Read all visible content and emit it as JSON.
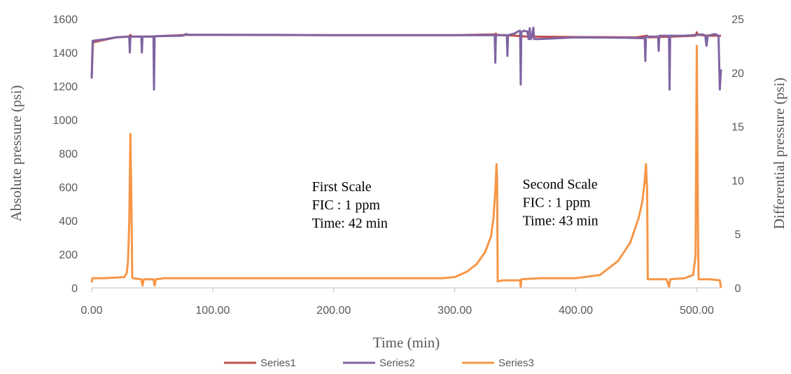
{
  "chart_data": {
    "type": "line",
    "title": "",
    "xlabel": "Time (min)",
    "ylabel": "Absolute pressure (psi)",
    "y2label": "Differential pressure (psi)",
    "xlim": [
      0,
      520
    ],
    "ylim": [
      0,
      1600
    ],
    "y2lim": [
      0,
      25
    ],
    "x_ticks": [
      "0.00",
      "100.00",
      "200.00",
      "300.00",
      "400.00",
      "500.00"
    ],
    "y_ticks": [
      "0",
      "200",
      "400",
      "600",
      "800",
      "1000",
      "1200",
      "1400",
      "1600"
    ],
    "y2_ticks": [
      "0",
      "5",
      "10",
      "15",
      "20",
      "25"
    ],
    "grid": false,
    "legend": "bottom",
    "annotations": [
      {
        "lines": [
          "First Scale",
          "FIC : 1 ppm",
          "Time: 42 min"
        ],
        "x": 182,
        "y": 576
      },
      {
        "lines": [
          "Second Scale",
          "FIC : 1 ppm",
          "Time: 43 min"
        ],
        "x": 356,
        "y": 590
      }
    ],
    "series": [
      {
        "name": "Series1",
        "color": "#C0504D",
        "axis": "left",
        "points": [
          [
            0,
            1250
          ],
          [
            1,
            1460
          ],
          [
            10,
            1475
          ],
          [
            20,
            1490
          ],
          [
            31,
            1495
          ],
          [
            32,
            1505
          ],
          [
            33,
            1495
          ],
          [
            50,
            1495
          ],
          [
            52,
            1497
          ],
          [
            80,
            1505
          ],
          [
            100,
            1505
          ],
          [
            200,
            1503
          ],
          [
            300,
            1503
          ],
          [
            333,
            1508
          ],
          [
            334,
            1512
          ],
          [
            335,
            1505
          ],
          [
            350,
            1500
          ],
          [
            360,
            1495
          ],
          [
            400,
            1492
          ],
          [
            450,
            1490
          ],
          [
            459,
            1500
          ],
          [
            460,
            1490
          ],
          [
            480,
            1495
          ],
          [
            499,
            1500
          ],
          [
            500,
            1520
          ],
          [
            501,
            1505
          ],
          [
            510,
            1500
          ],
          [
            520,
            1500
          ]
        ]
      },
      {
        "name": "Series2",
        "color": "#8064A2",
        "axis": "left",
        "points": [
          [
            0,
            1245
          ],
          [
            0.8,
            1470
          ],
          [
            10,
            1478
          ],
          [
            20,
            1490
          ],
          [
            30,
            1495
          ],
          [
            31,
            1495
          ],
          [
            31.5,
            1400
          ],
          [
            32,
            1495
          ],
          [
            41,
            1495
          ],
          [
            41.5,
            1400
          ],
          [
            42,
            1495
          ],
          [
            51,
            1495
          ],
          [
            51.5,
            1180
          ],
          [
            52,
            1497
          ],
          [
            60,
            1498
          ],
          [
            75,
            1500
          ],
          [
            78,
            1510
          ],
          [
            80,
            1505
          ],
          [
            100,
            1505
          ],
          [
            150,
            1505
          ],
          [
            200,
            1503
          ],
          [
            250,
            1503
          ],
          [
            300,
            1503
          ],
          [
            333,
            1503
          ],
          [
            333.5,
            1340
          ],
          [
            334,
            1503
          ],
          [
            343,
            1503
          ],
          [
            343.5,
            1380
          ],
          [
            344,
            1503
          ],
          [
            350,
            1515
          ],
          [
            352,
            1525
          ],
          [
            354,
            1530
          ],
          [
            354.5,
            1210
          ],
          [
            355,
            1520
          ],
          [
            357,
            1530
          ],
          [
            360,
            1525
          ],
          [
            361,
            1480
          ],
          [
            362,
            1545
          ],
          [
            362.5,
            1480
          ],
          [
            363,
            1480
          ],
          [
            365,
            1548
          ],
          [
            365.5,
            1480
          ],
          [
            370,
            1480
          ],
          [
            400,
            1490
          ],
          [
            440,
            1488
          ],
          [
            457,
            1485
          ],
          [
            457.5,
            1350
          ],
          [
            458,
            1495
          ],
          [
            468,
            1495
          ],
          [
            468.5,
            1410
          ],
          [
            469,
            1500
          ],
          [
            477,
            1500
          ],
          [
            477.5,
            1180
          ],
          [
            478,
            1500
          ],
          [
            490,
            1500
          ],
          [
            500,
            1505
          ],
          [
            505,
            1508
          ],
          [
            507,
            1500
          ],
          [
            508,
            1440
          ],
          [
            509,
            1500
          ],
          [
            512,
            1505
          ],
          [
            515,
            1510
          ],
          [
            518,
            1500
          ],
          [
            519,
            1180
          ],
          [
            520,
            1300
          ]
        ]
      },
      {
        "name": "Series3",
        "color": "#F79646",
        "axis": "right",
        "points": [
          [
            0,
            0.5
          ],
          [
            0.5,
            0.9
          ],
          [
            10,
            0.9
          ],
          [
            20,
            0.95
          ],
          [
            27,
            1.0
          ],
          [
            29,
            1.4
          ],
          [
            30,
            2.5
          ],
          [
            31,
            6
          ],
          [
            32,
            14.3
          ],
          [
            33,
            6
          ],
          [
            33.5,
            1.0
          ],
          [
            34,
            0.9
          ],
          [
            41,
            0.8
          ],
          [
            42,
            0.2
          ],
          [
            43,
            0.8
          ],
          [
            51,
            0.8
          ],
          [
            52,
            0.2
          ],
          [
            53,
            0.8
          ],
          [
            60,
            0.9
          ],
          [
            100,
            0.9
          ],
          [
            150,
            0.9
          ],
          [
            200,
            0.9
          ],
          [
            250,
            0.9
          ],
          [
            290,
            0.9
          ],
          [
            300,
            1.0
          ],
          [
            310,
            1.5
          ],
          [
            318,
            2.2
          ],
          [
            325,
            3.3
          ],
          [
            330,
            4.8
          ],
          [
            332,
            6.5
          ],
          [
            333.5,
            9
          ],
          [
            334.5,
            11.5
          ],
          [
            335,
            10
          ],
          [
            335.5,
            0.6
          ],
          [
            340,
            0.7
          ],
          [
            354,
            0.7
          ],
          [
            354.5,
            0.1
          ],
          [
            355,
            0.8
          ],
          [
            370,
            0.9
          ],
          [
            400,
            0.9
          ],
          [
            420,
            1.2
          ],
          [
            435,
            2.5
          ],
          [
            445,
            4.2
          ],
          [
            452,
            6.5
          ],
          [
            455,
            8
          ],
          [
            457,
            10
          ],
          [
            458,
            11.5
          ],
          [
            459,
            9
          ],
          [
            459.5,
            0.8
          ],
          [
            475,
            0.8
          ],
          [
            477,
            0.1
          ],
          [
            478,
            0.8
          ],
          [
            490,
            0.9
          ],
          [
            497,
            1.2
          ],
          [
            499,
            3
          ],
          [
            500,
            22.5
          ],
          [
            501,
            5
          ],
          [
            501.5,
            0.8
          ],
          [
            510,
            0.8
          ],
          [
            519,
            0.7
          ],
          [
            520,
            0.0
          ]
        ]
      }
    ]
  }
}
